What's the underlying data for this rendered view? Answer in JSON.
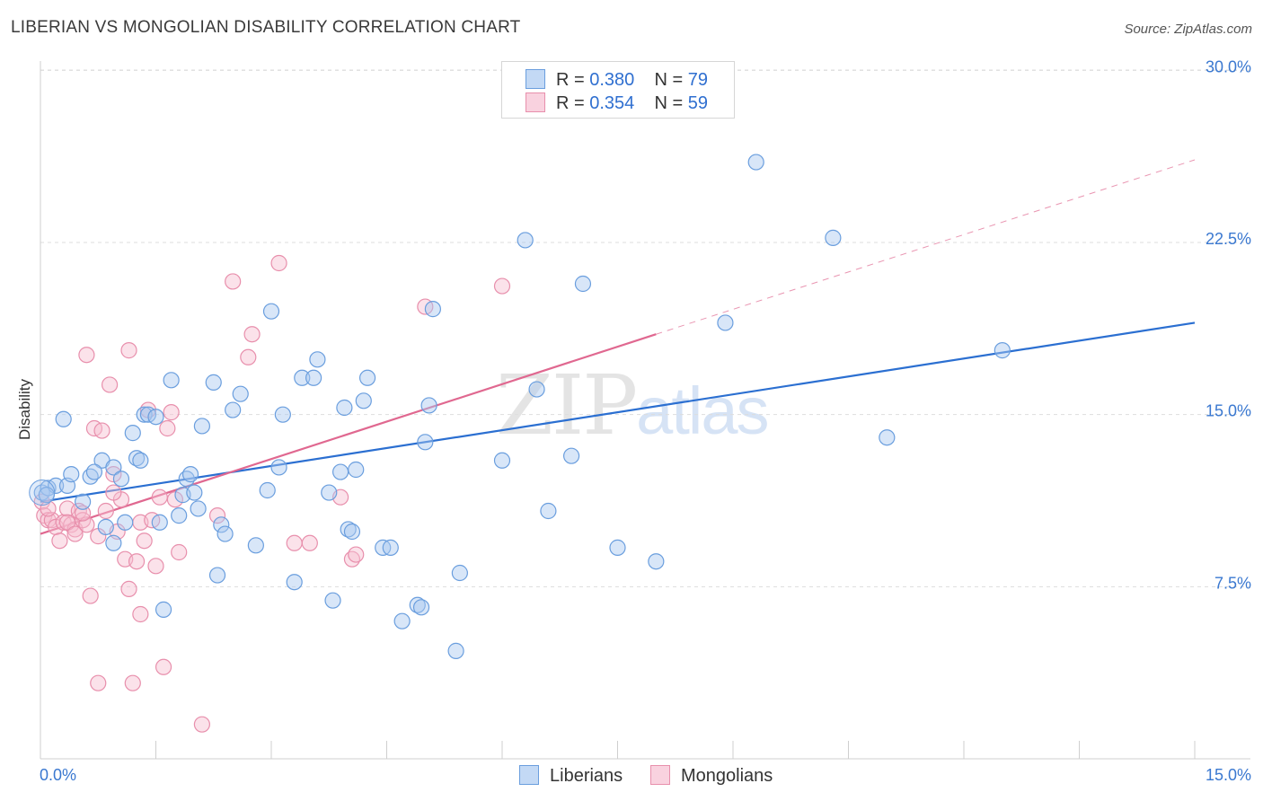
{
  "title": "LIBERIAN VS MONGOLIAN DISABILITY CORRELATION CHART",
  "source": "Source: ZipAtlas.com",
  "watermark": {
    "zip": "ZIP",
    "atlas": "atlas"
  },
  "legend": {
    "rows": [
      {
        "r_label": "R = ",
        "r_value": "0.380",
        "n_label": "N = ",
        "n_value": "79"
      },
      {
        "r_label": "R = ",
        "r_value": "0.354",
        "n_label": "N = ",
        "n_value": "59"
      }
    ]
  },
  "bottom_legend": {
    "series1": "Liberians",
    "series2": "Mongolians"
  },
  "colors": {
    "liberians_fill": "#a9c8f0",
    "liberians_stroke": "#6a9ede",
    "liberians_line": "#2b6fd1",
    "mongolians_fill": "#f6bfd0",
    "mongolians_stroke": "#e88fac",
    "mongolians_line": "#e06890",
    "tick_text": "#3a78d0",
    "grid": "#dddddd"
  },
  "chart_data": {
    "type": "scatter",
    "title": "LIBERIAN VS MONGOLIAN DISABILITY CORRELATION CHART",
    "xlabel": "",
    "ylabel": "Disability",
    "xlim": [
      0,
      15
    ],
    "ylim": [
      0,
      31.5
    ],
    "x_tick_labels": [
      "0.0%",
      "15.0%"
    ],
    "y_ticks": [
      7.5,
      15.0,
      22.5,
      30.0
    ],
    "y_tick_labels": [
      "7.5%",
      "15.0%",
      "22.5%",
      "30.0%"
    ],
    "grid": "horizontal dashed",
    "series": [
      {
        "name": "Liberians",
        "R": 0.38,
        "N": 79,
        "trend": {
          "x": [
            0,
            15
          ],
          "y": [
            11.2,
            19.0
          ],
          "style": "solid"
        },
        "points": [
          [
            0.02,
            11.6
          ],
          [
            0.1,
            11.8
          ],
          [
            0.2,
            11.9
          ],
          [
            0.3,
            14.8
          ],
          [
            0.35,
            11.9
          ],
          [
            0.4,
            12.4
          ],
          [
            0.55,
            11.2
          ],
          [
            0.65,
            12.3
          ],
          [
            0.8,
            13.0
          ],
          [
            0.95,
            12.7
          ],
          [
            0.7,
            12.5
          ],
          [
            0.85,
            10.1
          ],
          [
            0.95,
            9.4
          ],
          [
            1.05,
            12.2
          ],
          [
            1.1,
            10.3
          ],
          [
            1.2,
            14.2
          ],
          [
            1.25,
            13.1
          ],
          [
            1.3,
            13.0
          ],
          [
            1.35,
            15.0
          ],
          [
            1.4,
            15.0
          ],
          [
            1.5,
            14.9
          ],
          [
            1.55,
            10.3
          ],
          [
            1.6,
            6.5
          ],
          [
            1.7,
            16.5
          ],
          [
            1.8,
            10.6
          ],
          [
            1.85,
            11.5
          ],
          [
            1.9,
            12.2
          ],
          [
            1.95,
            12.4
          ],
          [
            2.0,
            11.6
          ],
          [
            2.05,
            10.9
          ],
          [
            2.1,
            14.5
          ],
          [
            2.25,
            16.4
          ],
          [
            2.3,
            8.0
          ],
          [
            2.35,
            10.2
          ],
          [
            2.4,
            9.8
          ],
          [
            2.5,
            15.2
          ],
          [
            2.6,
            15.9
          ],
          [
            2.8,
            9.3
          ],
          [
            2.95,
            11.7
          ],
          [
            3.0,
            19.5
          ],
          [
            3.1,
            12.7
          ],
          [
            3.15,
            15.0
          ],
          [
            3.3,
            7.7
          ],
          [
            3.4,
            16.6
          ],
          [
            3.55,
            16.6
          ],
          [
            3.6,
            17.4
          ],
          [
            3.75,
            11.6
          ],
          [
            3.8,
            6.9
          ],
          [
            3.9,
            12.5
          ],
          [
            3.95,
            15.3
          ],
          [
            4.0,
            10.0
          ],
          [
            4.05,
            9.9
          ],
          [
            4.1,
            12.6
          ],
          [
            4.2,
            15.6
          ],
          [
            4.25,
            16.6
          ],
          [
            4.45,
            9.2
          ],
          [
            4.55,
            9.2
          ],
          [
            4.7,
            6.0
          ],
          [
            4.9,
            6.7
          ],
          [
            4.95,
            6.6
          ],
          [
            5.0,
            13.8
          ],
          [
            5.05,
            15.4
          ],
          [
            5.1,
            19.6
          ],
          [
            5.4,
            4.7
          ],
          [
            5.45,
            8.1
          ],
          [
            6.0,
            13.0
          ],
          [
            6.3,
            22.6
          ],
          [
            6.45,
            16.1
          ],
          [
            6.6,
            10.8
          ],
          [
            6.9,
            13.2
          ],
          [
            7.05,
            20.7
          ],
          [
            7.5,
            9.2
          ],
          [
            8.0,
            8.6
          ],
          [
            8.9,
            19.0
          ],
          [
            9.3,
            26.0
          ],
          [
            10.3,
            22.7
          ],
          [
            11.0,
            14.0
          ],
          [
            12.5,
            17.8
          ],
          [
            0.08,
            11.5
          ]
        ]
      },
      {
        "name": "Mongolians",
        "R": 0.354,
        "N": 59,
        "trend": {
          "x": [
            0,
            8
          ],
          "y": [
            9.8,
            18.5
          ],
          "style": "solid",
          "extension": {
            "x": [
              8,
              15
            ],
            "y": [
              18.5,
              26.1
            ],
            "style": "dashed"
          }
        },
        "points": [
          [
            0.02,
            11.2
          ],
          [
            0.05,
            10.6
          ],
          [
            0.1,
            10.4
          ],
          [
            0.15,
            10.4
          ],
          [
            0.2,
            10.1
          ],
          [
            0.25,
            9.5
          ],
          [
            0.3,
            10.3
          ],
          [
            0.35,
            10.9
          ],
          [
            0.4,
            10.2
          ],
          [
            0.45,
            10.0
          ],
          [
            0.5,
            10.8
          ],
          [
            0.55,
            10.4
          ],
          [
            0.6,
            10.2
          ],
          [
            0.65,
            7.1
          ],
          [
            0.7,
            14.4
          ],
          [
            0.75,
            9.7
          ],
          [
            0.8,
            14.3
          ],
          [
            0.85,
            10.8
          ],
          [
            0.9,
            16.3
          ],
          [
            0.95,
            12.4
          ],
          [
            1.0,
            9.9
          ],
          [
            1.05,
            11.3
          ],
          [
            1.1,
            8.7
          ],
          [
            1.15,
            7.4
          ],
          [
            1.2,
            3.3
          ],
          [
            1.25,
            8.6
          ],
          [
            1.3,
            10.3
          ],
          [
            1.35,
            9.5
          ],
          [
            1.4,
            15.2
          ],
          [
            1.45,
            10.4
          ],
          [
            1.5,
            8.4
          ],
          [
            1.55,
            11.4
          ],
          [
            1.6,
            4.0
          ],
          [
            1.65,
            14.4
          ],
          [
            1.7,
            15.1
          ],
          [
            1.8,
            9.0
          ],
          [
            2.1,
            1.5
          ],
          [
            2.3,
            10.6
          ],
          [
            2.5,
            20.8
          ],
          [
            2.7,
            17.5
          ],
          [
            2.75,
            18.5
          ],
          [
            3.1,
            21.6
          ],
          [
            3.3,
            9.4
          ],
          [
            3.5,
            9.4
          ],
          [
            3.9,
            11.4
          ],
          [
            4.05,
            8.7
          ],
          [
            4.1,
            8.9
          ],
          [
            5.0,
            19.7
          ],
          [
            6.0,
            20.6
          ],
          [
            0.75,
            3.3
          ],
          [
            0.6,
            17.6
          ],
          [
            0.55,
            10.7
          ],
          [
            1.15,
            17.8
          ],
          [
            0.35,
            10.3
          ],
          [
            0.1,
            10.9
          ],
          [
            1.3,
            6.3
          ],
          [
            0.45,
            9.8
          ],
          [
            0.95,
            11.6
          ],
          [
            1.75,
            11.3
          ]
        ]
      }
    ]
  }
}
